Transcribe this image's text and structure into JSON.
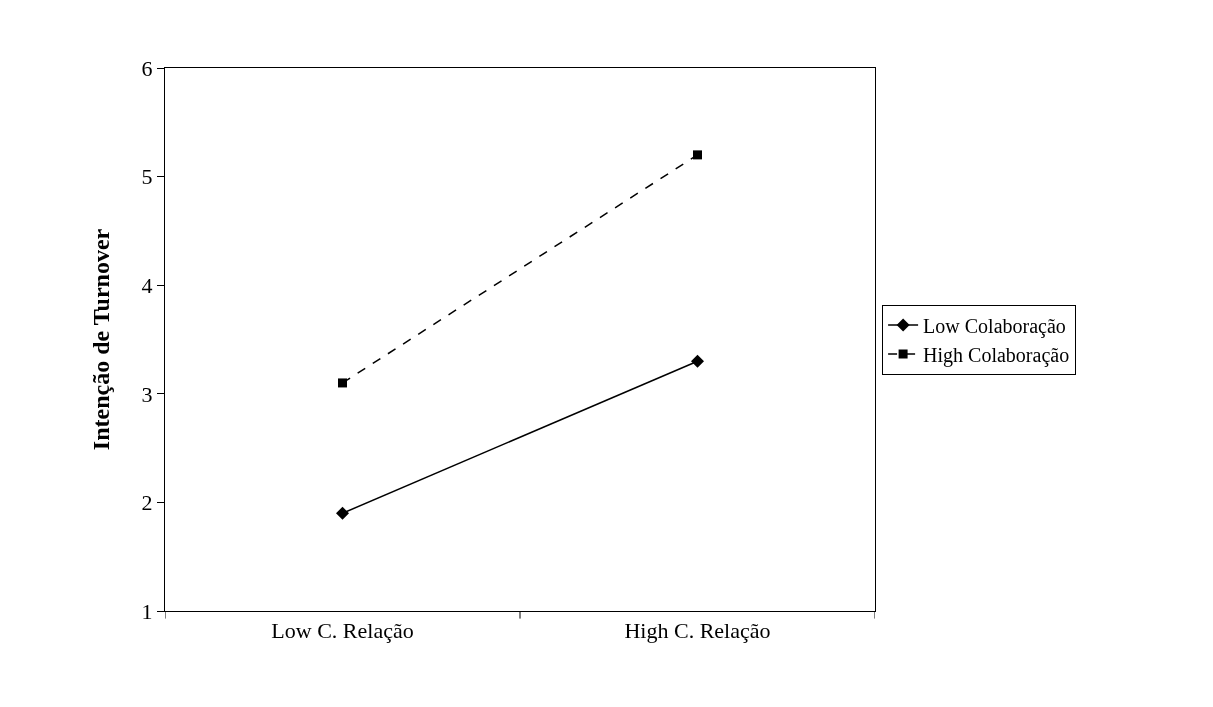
{
  "chart_data": {
    "type": "line",
    "ylabel": "Intenção de Turnover",
    "categories": [
      "Low C. Relação",
      "High C. Relação"
    ],
    "series": [
      {
        "name": "Low Colaboração",
        "color": "#000000",
        "values": [
          1.9,
          3.3
        ],
        "marker": "diamond",
        "line_style": "solid"
      },
      {
        "name": "High Colaboração",
        "color": "#000000",
        "values": [
          3.1,
          5.2
        ],
        "marker": "square",
        "line_style": "dashed"
      }
    ],
    "ylim": [
      1,
      6
    ],
    "yticks": [
      1,
      2,
      3,
      4,
      5,
      6
    ],
    "legend": "right"
  }
}
